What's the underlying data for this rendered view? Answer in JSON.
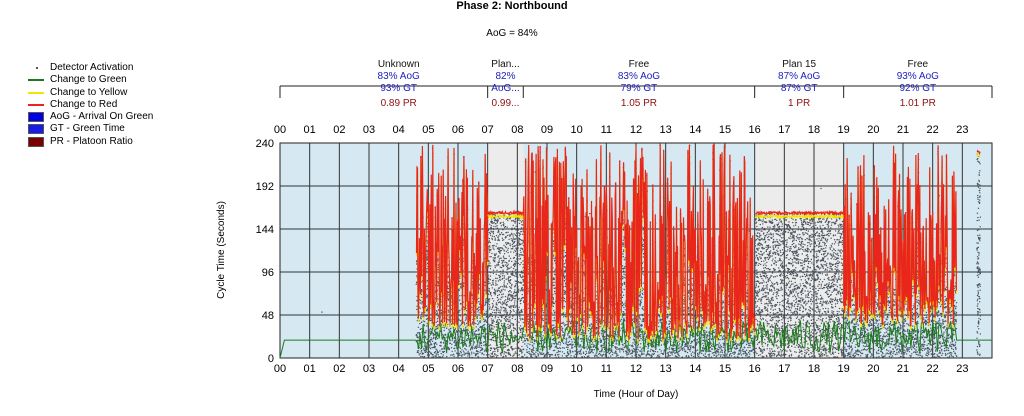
{
  "chart_data": {
    "type": "scatter",
    "title": "Phase 2: Northbound",
    "subtitle": "AoG = 84%",
    "xlabel": "Time (Hour of Day)",
    "ylabel": "Cycle Time (Seconds)",
    "xlim": [
      0,
      24
    ],
    "ylim": [
      0,
      240
    ],
    "x_ticks": [
      "00",
      "01",
      "02",
      "03",
      "04",
      "05",
      "06",
      "07",
      "08",
      "09",
      "10",
      "11",
      "12",
      "13",
      "14",
      "15",
      "16",
      "17",
      "18",
      "19",
      "20",
      "21",
      "22",
      "23"
    ],
    "y_ticks": [
      0,
      48,
      96,
      144,
      192,
      240
    ],
    "grid": true,
    "legend_position": "left",
    "legend": [
      {
        "key": "detector",
        "label": "Detector Activation",
        "kind": "dot",
        "color": "#5a6a7a"
      },
      {
        "key": "green",
        "label": "Change to Green",
        "kind": "line",
        "color": "#1e7a1e"
      },
      {
        "key": "yellow",
        "label": "Change to Yellow",
        "kind": "line",
        "color": "#f2e600"
      },
      {
        "key": "red",
        "label": "Change to Red",
        "kind": "line",
        "color": "#e8261c"
      },
      {
        "key": "aog",
        "label": "AoG - Arrival On Green",
        "kind": "box",
        "color": "#0000e0"
      },
      {
        "key": "gt",
        "label": "GT - Green Time",
        "kind": "box",
        "color": "#1a1ae8"
      },
      {
        "key": "pr",
        "label": "PR - Platoon Ratio",
        "kind": "box",
        "color": "#7a0000"
      }
    ],
    "plans": [
      {
        "name": "Unknown",
        "start": 0,
        "end": 7.0,
        "aog": "83% AoG",
        "gt": "93% GT",
        "pr": "0.89 PR",
        "shade": "#d6e9f2"
      },
      {
        "name": "Plan...",
        "start": 7.0,
        "end": 8.2,
        "aog": "82%",
        "gt": "AoG...",
        "pr": "0.99...",
        "shade": "#ececec"
      },
      {
        "name": "Free",
        "start": 8.2,
        "end": 16.0,
        "aog": "83% AoG",
        "gt": "79% GT",
        "pr": "1.05 PR",
        "shade": "#d6e9f2"
      },
      {
        "name": "Plan 15",
        "start": 16.0,
        "end": 19.0,
        "aog": "87% AoG",
        "gt": "87% GT",
        "pr": "1 PR",
        "shade": "#ececec"
      },
      {
        "name": "Free",
        "start": 19.0,
        "end": 24.0,
        "aog": "93% AoG",
        "gt": "92% GT",
        "pr": "1.01 PR",
        "shade": "#d6e9f2"
      }
    ],
    "series": [
      {
        "name": "Change to Red",
        "segments": [
          {
            "range": [
              4.6,
              7.0
            ],
            "min": 35,
            "max": 240
          },
          {
            "range": [
              7.0,
              8.2
            ],
            "const": 162
          },
          {
            "range": [
              8.2,
              16.0
            ],
            "min": 20,
            "max": 240
          },
          {
            "range": [
              16.0,
              19.0
            ],
            "const": 162
          },
          {
            "range": [
              19.0,
              22.8
            ],
            "min": 35,
            "max": 240
          },
          {
            "range": [
              23.5,
              23.6
            ],
            "const": 230
          }
        ]
      },
      {
        "name": "Change to Yellow",
        "offset_below_red": 4
      },
      {
        "name": "Change to Green",
        "baseline": 20,
        "active": [
          [
            4.6,
            19.0
          ],
          [
            19.0,
            22.8
          ]
        ],
        "active_min": 5,
        "active_max": 42
      }
    ]
  }
}
